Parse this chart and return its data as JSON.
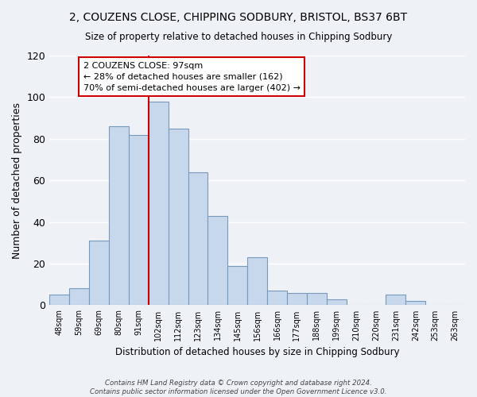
{
  "title": "2, COUZENS CLOSE, CHIPPING SODBURY, BRISTOL, BS37 6BT",
  "subtitle": "Size of property relative to detached houses in Chipping Sodbury",
  "xlabel": "Distribution of detached houses by size in Chipping Sodbury",
  "ylabel": "Number of detached properties",
  "bin_labels": [
    "48sqm",
    "59sqm",
    "69sqm",
    "80sqm",
    "91sqm",
    "102sqm",
    "112sqm",
    "123sqm",
    "134sqm",
    "145sqm",
    "156sqm",
    "166sqm",
    "177sqm",
    "188sqm",
    "199sqm",
    "210sqm",
    "220sqm",
    "231sqm",
    "242sqm",
    "253sqm",
    "263sqm"
  ],
  "bar_values": [
    5,
    8,
    31,
    86,
    82,
    98,
    85,
    64,
    43,
    19,
    23,
    7,
    6,
    6,
    3,
    0,
    0,
    5,
    2,
    0,
    0
  ],
  "bar_color": "#c8d8ec",
  "bar_edge_color": "#7799bb",
  "marker_line_x_label": "102sqm",
  "marker_line_color": "#cc0000",
  "annotation_title": "2 COUZENS CLOSE: 97sqm",
  "annotation_line1": "← 28% of detached houses are smaller (162)",
  "annotation_line2": "70% of semi-detached houses are larger (402) →",
  "annotation_box_color": "white",
  "annotation_box_edge_color": "#cc0000",
  "ylim": [
    0,
    120
  ],
  "yticks": [
    0,
    20,
    40,
    60,
    80,
    100,
    120
  ],
  "footer_line1": "Contains HM Land Registry data © Crown copyright and database right 2024.",
  "footer_line2": "Contains public sector information licensed under the Open Government Licence v3.0.",
  "background_color": "#eef2f7",
  "grid_color": "#ffffff"
}
